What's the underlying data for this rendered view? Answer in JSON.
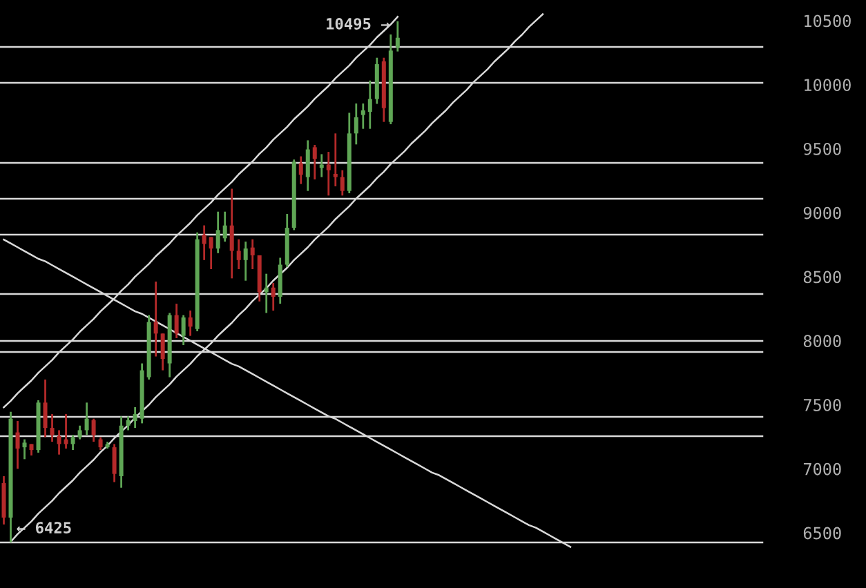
{
  "chart_data": {
    "type": "candlestick",
    "categories": [
      null,
      null,
      null,
      null,
      null,
      null,
      null,
      null,
      null,
      null,
      null,
      null,
      null,
      null,
      null,
      null,
      null,
      null,
      null,
      null,
      null,
      null,
      null,
      null,
      null,
      null,
      null,
      null,
      null,
      null,
      null,
      null,
      null,
      null,
      null,
      null,
      null,
      null,
      null,
      null,
      null,
      null,
      null,
      null,
      null,
      null,
      null,
      null,
      null,
      null,
      null,
      null,
      null,
      null,
      null,
      null,
      null,
      null,
      null,
      null,
      null,
      null,
      null,
      null,
      null,
      null,
      null,
      null,
      null,
      null,
      null,
      null,
      null,
      null,
      null,
      null,
      null,
      null,
      null,
      null,
      null,
      null,
      null
    ],
    "ohlc": [
      [
        6888,
        6942,
        6565,
        6619
      ],
      [
        6619,
        7445,
        6425,
        7391
      ],
      [
        7284,
        7373,
        7000,
        7158
      ],
      [
        7168,
        7230,
        7075,
        7204
      ],
      [
        7193,
        7193,
        7104,
        7147
      ],
      [
        7147,
        7535,
        7126,
        7517
      ],
      [
        7517,
        7697,
        7247,
        7319
      ],
      [
        7319,
        7427,
        7211,
        7265
      ],
      [
        7255,
        7301,
        7111,
        7193
      ],
      [
        7230,
        7427,
        7158,
        7193
      ],
      [
        7193,
        7265,
        7147,
        7247
      ],
      [
        7247,
        7337,
        7230,
        7301
      ],
      [
        7301,
        7517,
        7265,
        7391
      ],
      [
        7380,
        7391,
        7211,
        7265
      ],
      [
        7230,
        7247,
        7147,
        7168
      ],
      [
        7168,
        7211,
        7158,
        7193
      ],
      [
        7168,
        7193,
        6896,
        6960
      ],
      [
        6942,
        7409,
        6852,
        7337
      ],
      [
        7337,
        7409,
        7301,
        7380
      ],
      [
        7373,
        7481,
        7319,
        7427
      ],
      [
        7391,
        7823,
        7355,
        7769
      ],
      [
        7715,
        8200,
        7697,
        8146
      ],
      [
        8146,
        8462,
        7877,
        8056
      ],
      [
        8056,
        8056,
        7769,
        7858
      ],
      [
        7823,
        8217,
        7715,
        8200
      ],
      [
        8200,
        8289,
        8020,
        8056
      ],
      [
        8038,
        8200,
        7966,
        8182
      ],
      [
        8182,
        8236,
        8038,
        8110
      ],
      [
        8092,
        8846,
        8074,
        8792
      ],
      [
        8828,
        8901,
        8630,
        8756
      ],
      [
        8810,
        8810,
        8559,
        8720
      ],
      [
        8720,
        9008,
        8684,
        8864
      ],
      [
        8800,
        9008,
        8774,
        8900
      ],
      [
        8900,
        9187,
        8487,
        8702
      ],
      [
        8702,
        8792,
        8559,
        8630
      ],
      [
        8630,
        8774,
        8469,
        8720
      ],
      [
        8728,
        8792,
        8559,
        8667
      ],
      [
        8667,
        8667,
        8307,
        8379
      ],
      [
        8379,
        8523,
        8217,
        8415
      ],
      [
        8415,
        8451,
        8235,
        8343
      ],
      [
        8343,
        8648,
        8289,
        8594
      ],
      [
        8594,
        8990,
        8576,
        8882
      ],
      [
        8882,
        9415,
        8864,
        9397
      ],
      [
        9386,
        9440,
        9224,
        9296
      ],
      [
        9278,
        9565,
        9170,
        9494
      ],
      [
        9511,
        9529,
        9260,
        9421
      ],
      [
        9350,
        9457,
        9278,
        9375
      ],
      [
        9375,
        9475,
        9134,
        9332
      ],
      [
        9303,
        9619,
        9206,
        9278
      ],
      [
        9278,
        9332,
        9134,
        9170
      ],
      [
        9170,
        9780,
        9152,
        9619
      ],
      [
        9619,
        9853,
        9533,
        9745
      ],
      [
        9763,
        9853,
        9655,
        9799
      ],
      [
        9788,
        10032,
        9655,
        9888
      ],
      [
        9888,
        10210,
        9850,
        10160
      ],
      [
        10182,
        10210,
        9709,
        9817
      ],
      [
        9709,
        10392,
        9691,
        10266
      ],
      [
        10290,
        10495,
        10259,
        10366
      ],
      null,
      null,
      null,
      null,
      null,
      null,
      null,
      null,
      null,
      null,
      null,
      null,
      null,
      null,
      null,
      null,
      null,
      null,
      null,
      null,
      null,
      null,
      null,
      null,
      null
    ],
    "colors": [
      "#b52a2a",
      "#5fa655",
      "#b52a2a",
      "#5fa655",
      "#b52a2a",
      "#5fa655",
      "#b52a2a",
      "#b52a2a",
      "#b52a2a",
      "#b52a2a",
      "#5fa655",
      "#5fa655",
      "#5fa655",
      "#b52a2a",
      "#b52a2a",
      "#5fa655",
      "#b52a2a",
      "#5fa655",
      "#5fa655",
      "#5fa655",
      "#5fa655",
      "#5fa655",
      "#b52a2a",
      "#b52a2a",
      "#5fa655",
      "#b52a2a",
      "#5fa655",
      "#b52a2a",
      "#5fa655",
      "#b52a2a",
      "#b52a2a",
      "#5fa655",
      "#5fa655",
      "#b52a2a",
      "#b52a2a",
      "#5fa655",
      "#b52a2a",
      "#b52a2a",
      "#5fa655",
      "#b52a2a",
      "#5fa655",
      "#5fa655",
      "#5fa655",
      "#b52a2a",
      "#5fa655",
      "#b52a2a",
      "#5fa655",
      "#b52a2a",
      "#b52a2a",
      "#b52a2a",
      "#5fa655",
      "#5fa655",
      "#5fa655",
      "#5fa655",
      "#5fa655",
      "#b52a2a",
      "#5fa655",
      "#5fa655",
      null,
      null,
      null,
      null,
      null,
      null,
      null,
      null,
      null,
      null,
      null,
      null,
      null,
      null,
      null,
      null,
      null,
      null,
      null,
      null,
      null,
      null,
      null,
      null,
      null
    ],
    "series": [
      {
        "type": "line",
        "color": "#d9d9d9",
        "values": [
          7480,
          7530,
          7590,
          7640,
          7690,
          7750,
          7800,
          7850,
          7910,
          7960,
          8010,
          8070,
          8120,
          8170,
          8230,
          8280,
          8330,
          8390,
          8440,
          8500,
          8550,
          8600,
          8660,
          8710,
          8760,
          8820,
          8870,
          8920,
          8980,
          9030,
          9080,
          9140,
          9190,
          9240,
          9300,
          9350,
          9400,
          9460,
          9510,
          9570,
          9620,
          9670,
          9730,
          9780,
          9830,
          9890,
          9940,
          9990,
          10050,
          10100,
          10150,
          10210,
          10260,
          10310,
          10370,
          10420,
          10470,
          10530,
          null,
          null,
          null,
          null,
          null,
          null,
          null,
          null,
          null,
          null,
          null,
          null,
          null,
          null,
          null,
          null,
          null,
          null,
          null,
          null,
          null,
          null,
          null,
          null,
          null
        ]
      },
      {
        "type": "line",
        "color": "#d9d9d9",
        "values": [
          null,
          6430,
          6490,
          6540,
          6590,
          6650,
          6700,
          6750,
          6810,
          6860,
          6910,
          6970,
          7020,
          7070,
          7130,
          7180,
          7240,
          7290,
          7340,
          7400,
          7450,
          7500,
          7560,
          7610,
          7660,
          7720,
          7770,
          7820,
          7880,
          7930,
          7980,
          8040,
          8090,
          8140,
          8200,
          8250,
          8310,
          8360,
          8410,
          8470,
          8520,
          8570,
          8630,
          8680,
          8730,
          8790,
          8840,
          8890,
          8950,
          9000,
          9050,
          9110,
          9160,
          9210,
          9270,
          9320,
          9380,
          9430,
          9480,
          9540,
          9590,
          9640,
          9700,
          9750,
          9800,
          9860,
          9910,
          9960,
          10020,
          10070,
          10120,
          10180,
          10230,
          10280,
          10340,
          10390,
          10450,
          10500,
          10550,
          null,
          null,
          null,
          null
        ]
      },
      {
        "type": "line",
        "color": "#d9d9d9",
        "values": [
          8790,
          8760,
          8730,
          8700,
          8670,
          8640,
          8620,
          8590,
          8560,
          8530,
          8500,
          8470,
          8440,
          8410,
          8380,
          8350,
          8320,
          8290,
          8260,
          8230,
          8210,
          8180,
          8150,
          8120,
          8090,
          8060,
          8030,
          8000,
          7970,
          7940,
          7910,
          7880,
          7850,
          7820,
          7800,
          7770,
          7740,
          7710,
          7680,
          7650,
          7620,
          7590,
          7560,
          7530,
          7500,
          7470,
          7440,
          7410,
          7390,
          7360,
          7330,
          7300,
          7270,
          7240,
          7210,
          7180,
          7150,
          7120,
          7090,
          7060,
          7030,
          7000,
          6970,
          6950,
          6920,
          6890,
          6860,
          6830,
          6800,
          6770,
          6740,
          6710,
          6680,
          6650,
          6620,
          6590,
          6560,
          6540,
          6510,
          6480,
          6450,
          6420,
          6390
        ]
      }
    ],
    "ref_lines": [
      {
        "axis": "y",
        "value": 10295,
        "color": "#d9d9d9"
      },
      {
        "axis": "y",
        "value": 10014,
        "color": "#d9d9d9"
      },
      {
        "axis": "y",
        "value": 9389,
        "color": "#d9d9d9"
      },
      {
        "axis": "y",
        "value": 9109,
        "color": "#d9d9d9"
      },
      {
        "axis": "y",
        "value": 8828,
        "color": "#d9d9d9"
      },
      {
        "axis": "y",
        "value": 8365,
        "color": "#d9d9d9"
      },
      {
        "axis": "y",
        "value": 7998,
        "color": "#d9d9d9"
      },
      {
        "axis": "y",
        "value": 7912,
        "color": "#d9d9d9"
      },
      {
        "axis": "y",
        "value": 7406,
        "color": "#d9d9d9"
      },
      {
        "axis": "y",
        "value": 7255,
        "color": "#d9d9d9"
      },
      {
        "axis": "y",
        "value": 6425,
        "color": "#d9d9d9"
      }
    ],
    "annotations": [
      "10495 →",
      "← 6425"
    ],
    "ylim": [
      6069,
      10661
    ],
    "yticks": [
      6500,
      7000,
      7500,
      8000,
      8500,
      9000,
      9500,
      10000,
      10500
    ],
    "tick_labels": "y",
    "grid": false
  }
}
